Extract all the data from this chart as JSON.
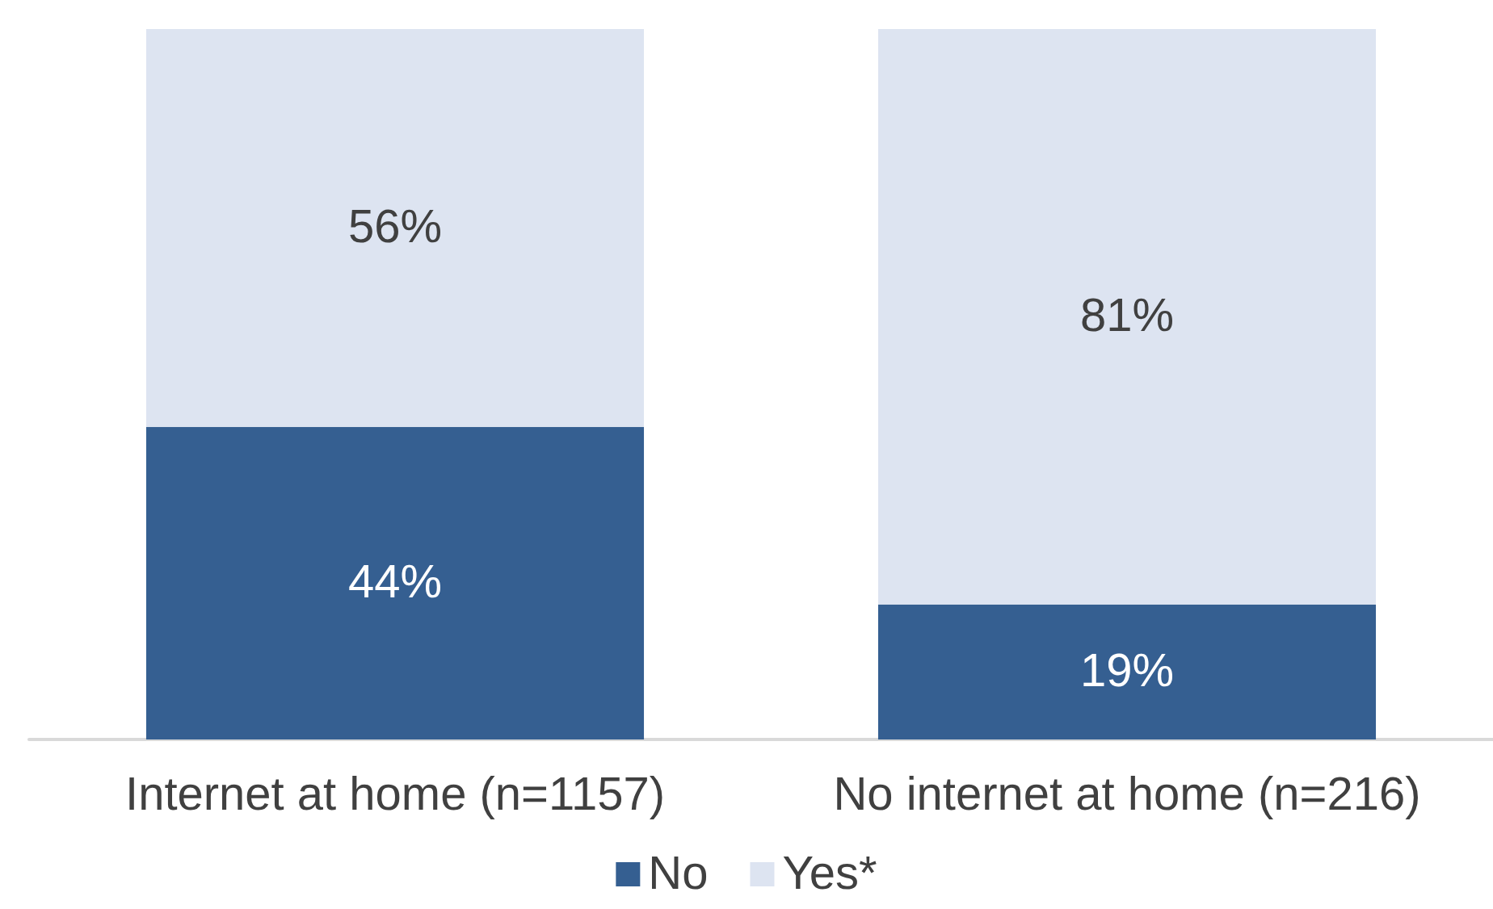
{
  "chart_data": {
    "type": "bar",
    "stacked": true,
    "legend": "bottom",
    "categories": [
      "Internet at home (n=1157)",
      "No internet at home (n=216)"
    ],
    "series": [
      {
        "name": "No",
        "color": "#355f91",
        "values": [
          44,
          19
        ],
        "value_labels": [
          "44%",
          "19%"
        ]
      },
      {
        "name": "Yes*",
        "color": "#dde4f1",
        "values": [
          56,
          81
        ],
        "value_labels": [
          "56%",
          "81%"
        ]
      }
    ]
  }
}
